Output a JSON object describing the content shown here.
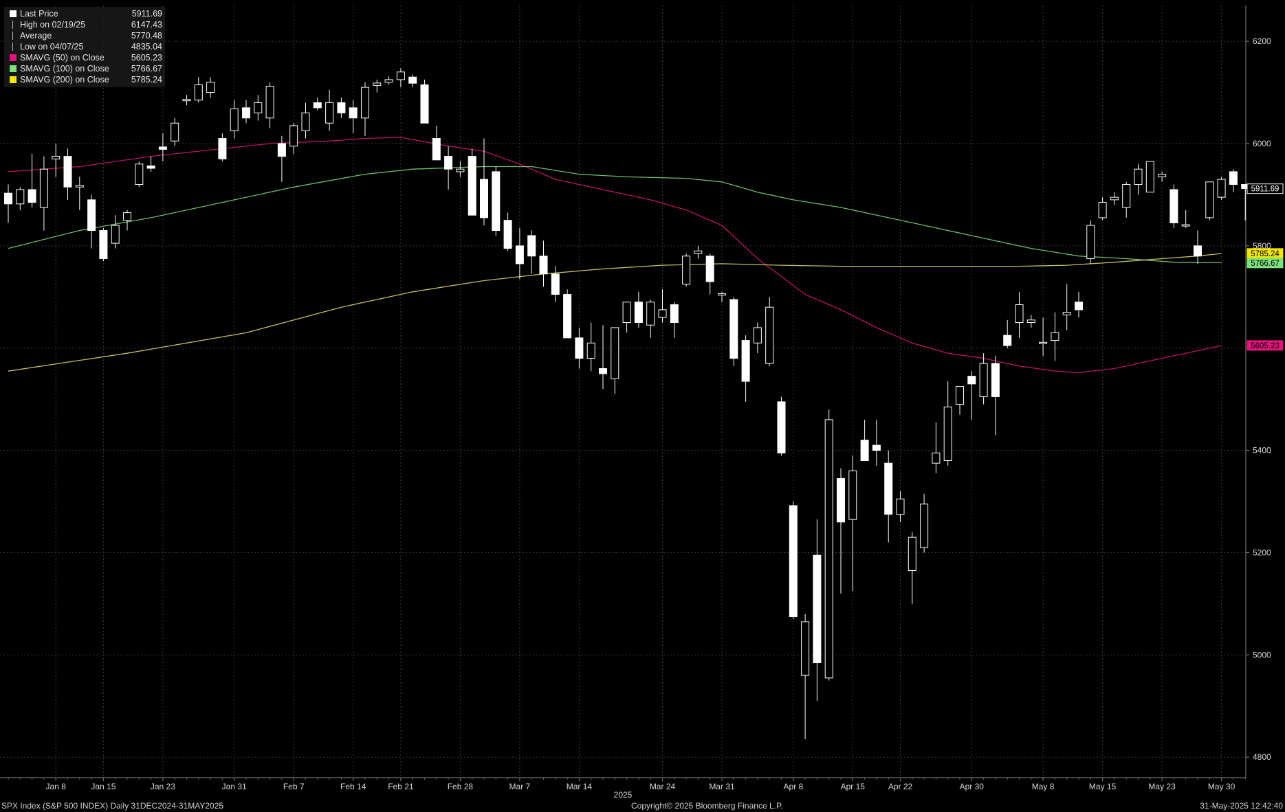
{
  "legend": [
    {
      "label": "Last Price",
      "value": "5911.69",
      "symbol": "candle"
    },
    {
      "label": "High on 02/19/25",
      "value": "6147.43",
      "symbol": "tick"
    },
    {
      "label": "Average",
      "value": "5770.48",
      "symbol": "tick"
    },
    {
      "label": "Low on 04/07/25",
      "value": "4835.04",
      "symbol": "tick"
    },
    {
      "label": "SMAVG (50)  on Close",
      "value": "5605.23",
      "symbol": "#e0147a"
    },
    {
      "label": "SMAVG (100)  on Close",
      "value": "5766.67",
      "symbol": "#7de07d"
    },
    {
      "label": "SMAVG (200)  on Close",
      "value": "5785.24",
      "symbol": "#f2e600"
    }
  ],
  "footer": {
    "left": "SPX Index (S&P 500 INDEX)  Daily 31DEC2024-31MAY2025",
    "center": "Copyright© 2025 Bloomberg Finance L.P.",
    "right": "31-May-2025 12:42:40"
  },
  "colors": {
    "background": "#000000",
    "grid": "#3a3a3a",
    "candle": "#ffffff",
    "sma50": "#e0147a",
    "sma100": "#7de07d",
    "sma200": "#e8e070"
  },
  "chart_data": {
    "type": "candlestick",
    "ylim": [
      4760,
      6270
    ],
    "yticks": [
      4800,
      5000,
      5200,
      5400,
      5600,
      5800,
      6000,
      6200
    ],
    "xtick_labels": [
      "Jan 8",
      "Jan 15",
      "Jan 23",
      "Jan 31",
      "Feb 7",
      "Feb 14",
      "Feb 21",
      "Feb 28",
      "Mar 7",
      "Mar 14",
      "Mar 24",
      "Mar 31",
      "Apr 8",
      "Apr 15",
      "Apr 22",
      "Apr 30",
      "May 8",
      "May 15",
      "May 23",
      "May 30"
    ],
    "xtick_index": [
      4,
      8,
      13,
      19,
      24,
      29,
      33,
      38,
      43,
      48,
      55,
      60,
      66,
      71,
      75,
      81,
      87,
      92,
      97,
      102
    ],
    "year_label": "2025",
    "price_labels": [
      {
        "value": 5911.69,
        "text": "5911.69",
        "color": "#ffffff"
      },
      {
        "value": 5785.24,
        "text": "5785.24",
        "color": "#f2e600"
      },
      {
        "value": 5766.67,
        "text": "5766.67",
        "color": "#7de07d"
      },
      {
        "value": 5605.23,
        "text": "5605.23",
        "color": "#e0147a"
      }
    ],
    "ohlc": [
      [
        5903,
        5920,
        5845,
        5882
      ],
      [
        5882,
        5915,
        5870,
        5910
      ],
      [
        5910,
        5980,
        5875,
        5885
      ],
      [
        5875,
        5975,
        5830,
        5950
      ],
      [
        5970,
        6000,
        5935,
        5975
      ],
      [
        5975,
        5990,
        5890,
        5915
      ],
      [
        5915,
        5935,
        5870,
        5918
      ],
      [
        5890,
        5900,
        5795,
        5830
      ],
      [
        5830,
        5835,
        5770,
        5775
      ],
      [
        5805,
        5860,
        5795,
        5840
      ],
      [
        5850,
        5870,
        5830,
        5865
      ],
      [
        5920,
        5965,
        5915,
        5960
      ],
      [
        5955,
        5975,
        5945,
        5953
      ],
      [
        5992,
        6020,
        5965,
        5990
      ],
      [
        6005,
        6050,
        5995,
        6040
      ],
      [
        6085,
        6095,
        6075,
        6085
      ],
      [
        6085,
        6130,
        6080,
        6115
      ],
      [
        6100,
        6130,
        6090,
        6120
      ],
      [
        6010,
        6020,
        5965,
        5970
      ],
      [
        6025,
        6085,
        6010,
        6068
      ],
      [
        6070,
        6085,
        6040,
        6050
      ],
      [
        6060,
        6095,
        6045,
        6080
      ],
      [
        6050,
        6120,
        6030,
        6112
      ],
      [
        6000,
        6015,
        5925,
        5975
      ],
      [
        5995,
        6040,
        5980,
        6035
      ],
      [
        6025,
        6080,
        6010,
        6060
      ],
      [
        6080,
        6090,
        6065,
        6070
      ],
      [
        6040,
        6105,
        6025,
        6080
      ],
      [
        6080,
        6090,
        6050,
        6060
      ],
      [
        6070,
        6085,
        6020,
        6050
      ],
      [
        6050,
        6120,
        6015,
        6110
      ],
      [
        6115,
        6125,
        6100,
        6117
      ],
      [
        6120,
        6132,
        6115,
        6125
      ],
      [
        6125,
        6147,
        6110,
        6140
      ],
      [
        6130,
        6135,
        6110,
        6118
      ],
      [
        6115,
        6125,
        6045,
        6040
      ],
      [
        6010,
        6035,
        5975,
        5968
      ],
      [
        5975,
        5995,
        5910,
        5950
      ],
      [
        5945,
        5965,
        5935,
        5950
      ],
      [
        5975,
        5990,
        5860,
        5860
      ],
      [
        5930,
        6010,
        5840,
        5855
      ],
      [
        5945,
        5955,
        5820,
        5830
      ],
      [
        5850,
        5865,
        5790,
        5795
      ],
      [
        5800,
        5835,
        5735,
        5765
      ],
      [
        5820,
        5830,
        5745,
        5780
      ],
      [
        5780,
        5810,
        5720,
        5745
      ],
      [
        5745,
        5760,
        5690,
        5705
      ],
      [
        5705,
        5715,
        5620,
        5620
      ],
      [
        5620,
        5640,
        5560,
        5580
      ],
      [
        5580,
        5650,
        5555,
        5610
      ],
      [
        5560,
        5645,
        5520,
        5550
      ],
      [
        5540,
        5640,
        5510,
        5640
      ],
      [
        5650,
        5690,
        5630,
        5690
      ],
      [
        5690,
        5710,
        5640,
        5650
      ],
      [
        5645,
        5695,
        5620,
        5690
      ],
      [
        5660,
        5715,
        5650,
        5675
      ],
      [
        5685,
        5690,
        5620,
        5650
      ],
      [
        5725,
        5785,
        5720,
        5780
      ],
      [
        5785,
        5800,
        5775,
        5790
      ],
      [
        5780,
        5785,
        5705,
        5730
      ],
      [
        5705,
        5710,
        5690,
        5705
      ],
      [
        5695,
        5700,
        5565,
        5580
      ],
      [
        5615,
        5625,
        5495,
        5535
      ],
      [
        5610,
        5650,
        5590,
        5640
      ],
      [
        5570,
        5700,
        5565,
        5680
      ],
      [
        5495,
        5505,
        5390,
        5395
      ],
      [
        5292,
        5300,
        5070,
        5075
      ],
      [
        4960,
        5080,
        4835,
        5065
      ],
      [
        5195,
        5265,
        4910,
        4985
      ],
      [
        4955,
        5480,
        4950,
        5460
      ],
      [
        5345,
        5365,
        5120,
        5260
      ],
      [
        5265,
        5390,
        5125,
        5360
      ],
      [
        5420,
        5460,
        5395,
        5380
      ],
      [
        5410,
        5460,
        5370,
        5400
      ],
      [
        5375,
        5400,
        5220,
        5275
      ],
      [
        5275,
        5320,
        5260,
        5305
      ],
      [
        5165,
        5240,
        5100,
        5230
      ],
      [
        5210,
        5315,
        5200,
        5295
      ],
      [
        5375,
        5455,
        5355,
        5395
      ],
      [
        5380,
        5535,
        5370,
        5485
      ],
      [
        5490,
        5525,
        5470,
        5525
      ],
      [
        5545,
        5555,
        5460,
        5530
      ],
      [
        5505,
        5590,
        5490,
        5570
      ],
      [
        5570,
        5585,
        5430,
        5505
      ],
      [
        5625,
        5655,
        5600,
        5605
      ],
      [
        5650,
        5710,
        5620,
        5685
      ],
      [
        5650,
        5665,
        5640,
        5655
      ],
      [
        5610,
        5660,
        5585,
        5610
      ],
      [
        5615,
        5670,
        5575,
        5630
      ],
      [
        5665,
        5725,
        5635,
        5670
      ],
      [
        5690,
        5710,
        5660,
        5675
      ],
      [
        5775,
        5850,
        5765,
        5840
      ],
      [
        5855,
        5895,
        5850,
        5885
      ],
      [
        5890,
        5905,
        5880,
        5895
      ],
      [
        5875,
        5925,
        5855,
        5920
      ],
      [
        5920,
        5960,
        5900,
        5950
      ],
      [
        5905,
        5965,
        5905,
        5965
      ],
      [
        5935,
        5945,
        5925,
        5940
      ],
      [
        5910,
        5920,
        5835,
        5845
      ],
      [
        5840,
        5870,
        5835,
        5840
      ],
      [
        5800,
        5830,
        5765,
        5780
      ],
      [
        5855,
        5925,
        5850,
        5925
      ],
      [
        5895,
        5935,
        5890,
        5930
      ],
      [
        5945,
        5950,
        5905,
        5920
      ],
      [
        5920,
        5920,
        5850,
        5912
      ]
    ],
    "series": [
      {
        "name": "SMAVG (50)  on Close",
        "color": "#e0147a",
        "values": [
          [
            0,
            5945
          ],
          [
            6,
            5955
          ],
          [
            12,
            5975
          ],
          [
            18,
            5990
          ],
          [
            22,
            6000
          ],
          [
            27,
            6005
          ],
          [
            30,
            6010
          ],
          [
            33,
            6012
          ],
          [
            37,
            5995
          ],
          [
            40,
            5985
          ],
          [
            43,
            5960
          ],
          [
            46,
            5930
          ],
          [
            50,
            5910
          ],
          [
            54,
            5890
          ],
          [
            57,
            5870
          ],
          [
            60,
            5840
          ],
          [
            63,
            5775
          ],
          [
            65,
            5740
          ],
          [
            67,
            5705
          ],
          [
            70,
            5675
          ],
          [
            73,
            5640
          ],
          [
            76,
            5610
          ],
          [
            79,
            5590
          ],
          [
            82,
            5580
          ],
          [
            85,
            5565
          ],
          [
            88,
            5555
          ],
          [
            90,
            5552
          ],
          [
            93,
            5560
          ],
          [
            96,
            5575
          ],
          [
            99,
            5590
          ],
          [
            102,
            5605
          ]
        ]
      },
      {
        "name": "SMAVG (100)  on Close",
        "color": "#7de07d",
        "values": [
          [
            0,
            5795
          ],
          [
            6,
            5830
          ],
          [
            12,
            5855
          ],
          [
            18,
            5885
          ],
          [
            24,
            5915
          ],
          [
            30,
            5940
          ],
          [
            34,
            5950
          ],
          [
            40,
            5955
          ],
          [
            44,
            5955
          ],
          [
            48,
            5940
          ],
          [
            52,
            5935
          ],
          [
            57,
            5932
          ],
          [
            60,
            5925
          ],
          [
            63,
            5905
          ],
          [
            66,
            5890
          ],
          [
            70,
            5875
          ],
          [
            74,
            5855
          ],
          [
            78,
            5835
          ],
          [
            82,
            5815
          ],
          [
            86,
            5795
          ],
          [
            90,
            5780
          ],
          [
            94,
            5775
          ],
          [
            98,
            5768
          ],
          [
            102,
            5767
          ]
        ]
      },
      {
        "name": "SMAVG (200)  on Close",
        "color": "#e8e070",
        "values": [
          [
            0,
            5555
          ],
          [
            10,
            5590
          ],
          [
            20,
            5630
          ],
          [
            28,
            5680
          ],
          [
            34,
            5710
          ],
          [
            40,
            5732
          ],
          [
            45,
            5745
          ],
          [
            50,
            5755
          ],
          [
            55,
            5762
          ],
          [
            60,
            5765
          ],
          [
            65,
            5762
          ],
          [
            70,
            5760
          ],
          [
            75,
            5760
          ],
          [
            80,
            5760
          ],
          [
            85,
            5760
          ],
          [
            89,
            5762
          ],
          [
            93,
            5768
          ],
          [
            97,
            5775
          ],
          [
            100,
            5780
          ],
          [
            102,
            5785
          ]
        ]
      }
    ]
  }
}
